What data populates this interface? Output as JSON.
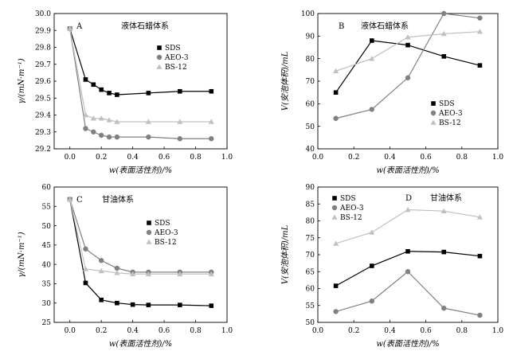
{
  "colors": {
    "SDS": "#000000",
    "AEO-3": "#808080",
    "BS-12": "#c0c0c0"
  },
  "chart_data": [
    {
      "type": "line",
      "panel_letter": "A",
      "system_label": "液体石蜡体系",
      "ylabel": "γ/(mN·m⁻¹)",
      "xlabel": "w(表面活性剂)/%",
      "xlim": [
        -0.1,
        1.0
      ],
      "ylim": [
        29.2,
        30.0
      ],
      "xticks": [
        0.0,
        0.2,
        0.4,
        0.6,
        0.8,
        1.0
      ],
      "xtick_labels": [
        "0.0",
        "0.2",
        "0.4",
        "0.6",
        "0.8",
        "1.0"
      ],
      "yticks": [
        29.2,
        29.3,
        29.4,
        29.5,
        29.6,
        29.7,
        29.8,
        29.9,
        30.0
      ],
      "ytick_labels": [
        "29.2",
        "29.3",
        "29.4",
        "29.5",
        "29.6",
        "29.7",
        "29.8",
        "29.9",
        "30.0"
      ],
      "legend_position": "upper-right",
      "series": [
        {
          "name": "SDS",
          "marker": "square",
          "x": [
            0,
            0.1,
            0.15,
            0.2,
            0.25,
            0.3,
            0.5,
            0.7,
            0.9
          ],
          "y": [
            29.91,
            29.61,
            29.58,
            29.55,
            29.53,
            29.52,
            29.53,
            29.54,
            29.54
          ]
        },
        {
          "name": "AEO-3",
          "marker": "circle",
          "x": [
            0,
            0.1,
            0.15,
            0.2,
            0.25,
            0.3,
            0.5,
            0.7,
            0.9
          ],
          "y": [
            29.91,
            29.32,
            29.3,
            29.28,
            29.27,
            29.27,
            29.27,
            29.26,
            29.26
          ]
        },
        {
          "name": "BS-12",
          "marker": "triangle",
          "x": [
            0,
            0.1,
            0.15,
            0.2,
            0.25,
            0.3,
            0.5,
            0.7,
            0.9
          ],
          "y": [
            29.91,
            29.4,
            29.38,
            29.38,
            29.37,
            29.36,
            29.36,
            29.36,
            29.36
          ]
        }
      ]
    },
    {
      "type": "line",
      "panel_letter": "B",
      "system_label": "液体石蜡体系",
      "ylabel": "V(安泡体积)/mL",
      "xlabel": "w(表面活性剂)/%",
      "xlim": [
        0.0,
        1.0
      ],
      "ylim": [
        40,
        100
      ],
      "xticks": [
        0.0,
        0.2,
        0.4,
        0.6,
        0.8,
        1.0
      ],
      "xtick_labels": [
        "0.0",
        "0.2",
        "0.4",
        "0.6",
        "0.8",
        "1.0"
      ],
      "yticks": [
        40,
        50,
        60,
        70,
        80,
        90,
        100
      ],
      "ytick_labels": [
        "40",
        "50",
        "60",
        "70",
        "80",
        "90",
        "100"
      ],
      "legend_position": "lower-right",
      "series": [
        {
          "name": "SDS",
          "marker": "square",
          "x": [
            0.1,
            0.3,
            0.5,
            0.7,
            0.9
          ],
          "y": [
            65,
            88,
            86,
            81,
            77
          ]
        },
        {
          "name": "AEO-3",
          "marker": "circle",
          "x": [
            0.1,
            0.3,
            0.5,
            0.7,
            0.9
          ],
          "y": [
            53.5,
            57.5,
            71.5,
            100,
            98
          ]
        },
        {
          "name": "BS-12",
          "marker": "triangle",
          "x": [
            0.1,
            0.3,
            0.5,
            0.7,
            0.9
          ],
          "y": [
            74.5,
            80,
            89.5,
            91,
            92
          ]
        }
      ]
    },
    {
      "type": "line",
      "panel_letter": "C",
      "system_label": "甘油体系",
      "ylabel": "γ/(mN·m⁻¹)",
      "xlabel": "w(表面活性剂)/%",
      "xlim": [
        -0.1,
        1.0
      ],
      "ylim": [
        25,
        60
      ],
      "xticks": [
        0.0,
        0.2,
        0.4,
        0.6,
        0.8,
        1.0
      ],
      "xtick_labels": [
        "0.0",
        "0.2",
        "0.4",
        "0.6",
        "0.8",
        "1.0"
      ],
      "yticks": [
        25,
        30,
        35,
        40,
        45,
        50,
        55,
        60
      ],
      "ytick_labels": [
        "25",
        "30",
        "35",
        "40",
        "45",
        "50",
        "55",
        "60"
      ],
      "legend_position": "center-right",
      "series": [
        {
          "name": "SDS",
          "marker": "square",
          "x": [
            0,
            0.1,
            0.2,
            0.3,
            0.4,
            0.5,
            0.7,
            0.9
          ],
          "y": [
            56.8,
            35.2,
            30.8,
            30.0,
            29.6,
            29.5,
            29.5,
            29.3
          ]
        },
        {
          "name": "AEO-3",
          "marker": "circle",
          "x": [
            0,
            0.1,
            0.2,
            0.3,
            0.4,
            0.5,
            0.7,
            0.9
          ],
          "y": [
            56.8,
            44.0,
            41.0,
            39.0,
            38.0,
            38.0,
            38.0,
            38.0
          ]
        },
        {
          "name": "BS-12",
          "marker": "triangle",
          "x": [
            0,
            0.1,
            0.2,
            0.3,
            0.4,
            0.5,
            0.7,
            0.9
          ],
          "y": [
            56.8,
            38.8,
            38.3,
            37.8,
            37.5,
            37.5,
            37.5,
            37.5
          ]
        }
      ]
    },
    {
      "type": "line",
      "panel_letter": "D",
      "system_label": "甘油体系",
      "ylabel": "V(安泡体积)/mL",
      "xlabel": "w(表面活性剂)/%",
      "xlim": [
        0.0,
        1.0
      ],
      "ylim": [
        50,
        90
      ],
      "xticks": [
        0.0,
        0.2,
        0.4,
        0.6,
        0.8,
        1.0
      ],
      "xtick_labels": [
        "0.0",
        "0.2",
        "0.4",
        "0.6",
        "0.8",
        "1.0"
      ],
      "yticks": [
        50,
        55,
        60,
        65,
        70,
        75,
        80,
        85,
        90
      ],
      "ytick_labels": [
        "50",
        "55",
        "60",
        "65",
        "70",
        "75",
        "80",
        "85",
        "90"
      ],
      "legend_position": "upper-left",
      "series": [
        {
          "name": "SDS",
          "marker": "square",
          "x": [
            0.1,
            0.3,
            0.5,
            0.7,
            0.9
          ],
          "y": [
            60.8,
            66.7,
            71.0,
            70.8,
            69.6
          ]
        },
        {
          "name": "AEO-3",
          "marker": "circle",
          "x": [
            0.1,
            0.3,
            0.5,
            0.7,
            0.9
          ],
          "y": [
            53.2,
            56.3,
            65.0,
            54.2,
            52.1
          ]
        },
        {
          "name": "BS-12",
          "marker": "triangle",
          "x": [
            0.1,
            0.3,
            0.5,
            0.7,
            0.9
          ],
          "y": [
            73.3,
            76.6,
            83.3,
            82.9,
            81.1
          ]
        }
      ]
    }
  ]
}
